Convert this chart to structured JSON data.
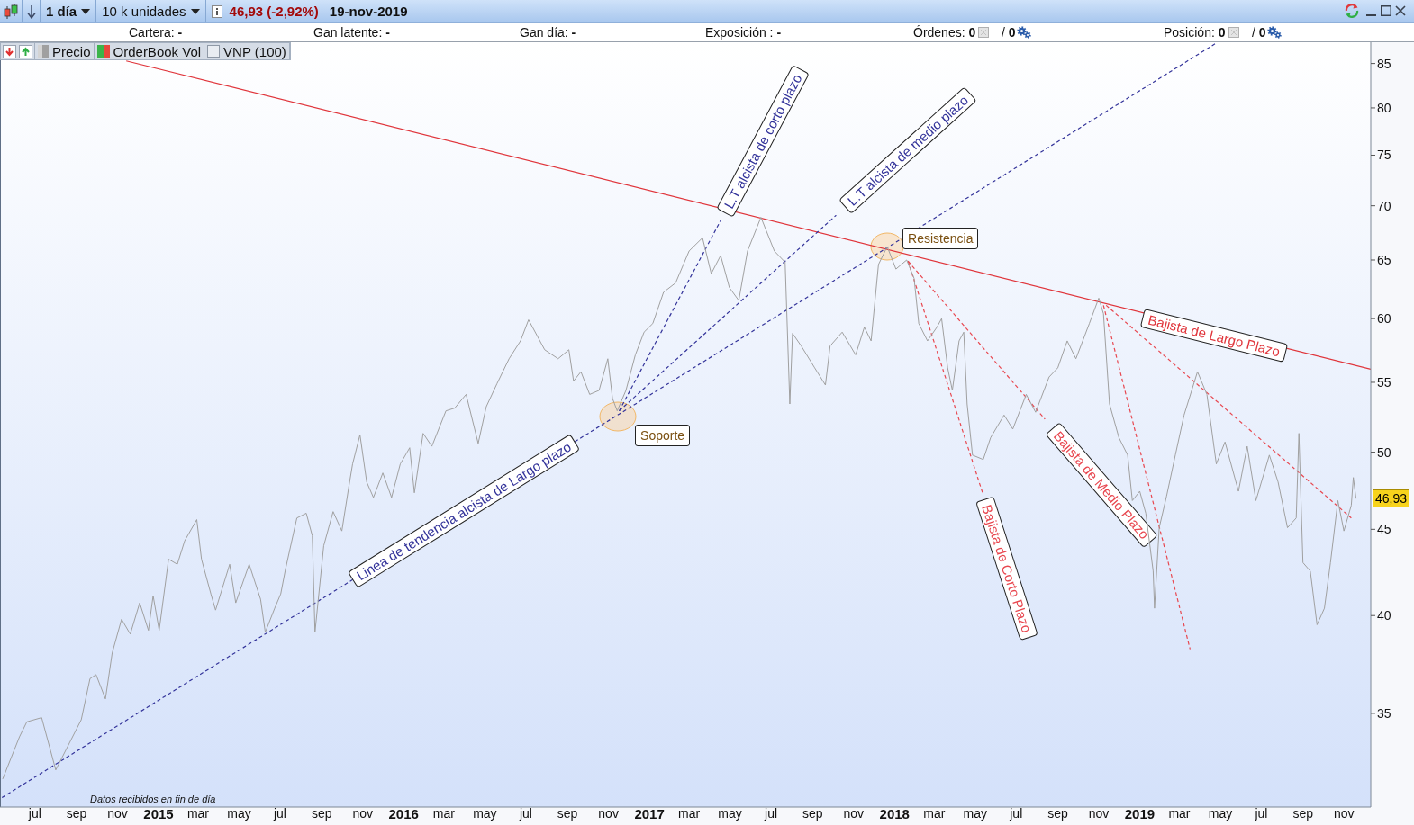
{
  "chart_data": {
    "type": "line",
    "xlim": [
      "2014-05-10",
      "2019-12-11"
    ],
    "ylim": [
      30.8,
      87.5
    ],
    "log": true,
    "xticks": [
      {
        "value": "2014-07-01",
        "label": "jul"
      },
      {
        "value": "2014-09-01",
        "label": "sep"
      },
      {
        "value": "2014-11-01",
        "label": "nov"
      },
      {
        "value": "2015-01-01",
        "label": "2015"
      },
      {
        "value": "2015-03-01",
        "label": "mar"
      },
      {
        "value": "2015-05-01",
        "label": "may"
      },
      {
        "value": "2015-07-01",
        "label": "jul"
      },
      {
        "value": "2015-09-01",
        "label": "sep"
      },
      {
        "value": "2015-11-01",
        "label": "nov"
      },
      {
        "value": "2016-01-01",
        "label": "2016"
      },
      {
        "value": "2016-03-01",
        "label": "mar"
      },
      {
        "value": "2016-05-01",
        "label": "may"
      },
      {
        "value": "2016-07-01",
        "label": "jul"
      },
      {
        "value": "2016-09-01",
        "label": "sep"
      },
      {
        "value": "2016-11-01",
        "label": "nov"
      },
      {
        "value": "2017-01-01",
        "label": "2017"
      },
      {
        "value": "2017-03-01",
        "label": "mar"
      },
      {
        "value": "2017-05-01",
        "label": "may"
      },
      {
        "value": "2017-07-01",
        "label": "jul"
      },
      {
        "value": "2017-09-01",
        "label": "sep"
      },
      {
        "value": "2017-11-01",
        "label": "nov"
      },
      {
        "value": "2018-01-01",
        "label": "2018"
      },
      {
        "value": "2018-03-01",
        "label": "mar"
      },
      {
        "value": "2018-05-01",
        "label": "may"
      },
      {
        "value": "2018-07-01",
        "label": "jul"
      },
      {
        "value": "2018-09-01",
        "label": "sep"
      },
      {
        "value": "2018-11-01",
        "label": "nov"
      },
      {
        "value": "2019-01-01",
        "label": "2019"
      },
      {
        "value": "2019-03-01",
        "label": "mar"
      },
      {
        "value": "2019-05-01",
        "label": "may"
      },
      {
        "value": "2019-07-01",
        "label": "jul"
      },
      {
        "value": "2019-09-01",
        "label": "sep"
      },
      {
        "value": "2019-11-01",
        "label": "nov"
      }
    ],
    "yticks": [
      35,
      40,
      45,
      50,
      55,
      60,
      65,
      70,
      75,
      80,
      85
    ],
    "legend": "top left",
    "series": [
      {
        "name": "Precio",
        "color": "#a0a0a0",
        "x": [
          "2014-05-14",
          "2014-06-08",
          "2014-06-19",
          "2014-07-11",
          "2014-08-01",
          "2014-09-08",
          "2014-09-21",
          "2014-09-30",
          "2014-10-14",
          "2014-10-24",
          "2014-11-07",
          "2014-11-20",
          "2014-12-04",
          "2014-12-17",
          "2014-12-24",
          "2015-01-02",
          "2015-01-16",
          "2015-01-29",
          "2015-02-09",
          "2015-02-27",
          "2015-03-06",
          "2015-03-20",
          "2015-03-27",
          "2015-04-17",
          "2015-04-26",
          "2015-05-16",
          "2015-06-02",
          "2015-06-09",
          "2015-06-23",
          "2015-07-02",
          "2015-07-09",
          "2015-07-26",
          "2015-08-09",
          "2015-08-18",
          "2015-08-22",
          "2015-09-04",
          "2015-09-18",
          "2015-10-01",
          "2015-10-11",
          "2015-10-17",
          "2015-10-28",
          "2015-11-07",
          "2015-11-17",
          "2015-12-01",
          "2015-12-14",
          "2015-12-27",
          "2016-01-10",
          "2016-01-17",
          "2016-01-30",
          "2016-02-12",
          "2016-03-04",
          "2016-03-17",
          "2016-04-03",
          "2016-04-21",
          "2016-05-03",
          "2016-05-19",
          "2016-06-06",
          "2016-06-23",
          "2016-07-05",
          "2016-07-29",
          "2016-08-18",
          "2016-09-03",
          "2016-09-10",
          "2016-09-21",
          "2016-10-04",
          "2016-10-18",
          "2016-10-31",
          "2016-11-07",
          "2016-11-14",
          "2016-11-27",
          "2016-12-11",
          "2016-12-24",
          "2017-01-06",
          "2017-01-22",
          "2017-02-09",
          "2017-03-01",
          "2017-03-21",
          "2017-04-03",
          "2017-04-17",
          "2017-04-30",
          "2017-05-14",
          "2017-05-27",
          "2017-06-16",
          "2017-07-06",
          "2017-07-22",
          "2017-07-29",
          "2017-08-02",
          "2017-08-15",
          "2017-09-04",
          "2017-09-20",
          "2017-09-27",
          "2017-10-15",
          "2017-11-04",
          "2017-11-17",
          "2017-11-27",
          "2017-12-08",
          "2017-12-21",
          "2018-01-03",
          "2018-01-19",
          "2018-01-30",
          "2018-02-06",
          "2018-02-19",
          "2018-03-05",
          "2018-03-12",
          "2018-03-21",
          "2018-03-28",
          "2018-04-07",
          "2018-04-14",
          "2018-04-19",
          "2018-04-27",
          "2018-05-13",
          "2018-05-24",
          "2018-06-13",
          "2018-06-26",
          "2018-07-16",
          "2018-07-30",
          "2018-08-19",
          "2018-09-01",
          "2018-09-15",
          "2018-09-28",
          "2018-10-18",
          "2018-11-01",
          "2018-11-08",
          "2018-11-17",
          "2018-12-01",
          "2018-12-14",
          "2018-12-21",
          "2019-01-01",
          "2019-01-10",
          "2019-01-21",
          "2019-01-23",
          "2019-01-30",
          "2019-02-10",
          "2019-02-23",
          "2019-03-08",
          "2019-03-28",
          "2019-04-11",
          "2019-04-25",
          "2019-05-08",
          "2019-05-28",
          "2019-06-10",
          "2019-06-23",
          "2019-07-13",
          "2019-07-26",
          "2019-08-09",
          "2019-08-22",
          "2019-08-26",
          "2019-09-01",
          "2019-09-12",
          "2019-09-22",
          "2019-10-03",
          "2019-10-12",
          "2019-10-23",
          "2019-11-01",
          "2019-11-12",
          "2019-11-15",
          "2019-11-19"
        ],
        "values": [
          32.0,
          33.9,
          34.6,
          34.8,
          32.4,
          34.7,
          36.7,
          36.9,
          35.7,
          38.0,
          39.8,
          39.0,
          40.7,
          39.2,
          41.1,
          39.2,
          43.2,
          42.9,
          44.3,
          45.6,
          43.2,
          41.2,
          40.3,
          42.9,
          40.7,
          42.9,
          40.9,
          39.1,
          40.4,
          41.2,
          42.6,
          45.7,
          46.0,
          44.6,
          39.1,
          44.0,
          46.1,
          44.9,
          47.6,
          49.2,
          51.2,
          48.0,
          47.0,
          48.6,
          47.0,
          49.2,
          50.3,
          47.3,
          51.3,
          50.4,
          52.9,
          53.1,
          54.1,
          50.6,
          53.2,
          54.9,
          56.8,
          58.2,
          59.9,
          57.5,
          56.8,
          57.5,
          55.1,
          55.8,
          54.1,
          54.4,
          56.8,
          53.8,
          52.9,
          54.4,
          57.1,
          58.9,
          59.6,
          62.2,
          63.0,
          65.8,
          67.0,
          63.8,
          65.4,
          62.6,
          61.5,
          65.8,
          68.9,
          65.8,
          64.8,
          53.4,
          58.8,
          57.8,
          56.1,
          54.8,
          57.8,
          58.9,
          57.1,
          59.3,
          58.2,
          64.6,
          66.2,
          64.2,
          65.0,
          63.4,
          59.6,
          58.2,
          59.3,
          60.0,
          56.1,
          54.4,
          58.2,
          58.9,
          53.4,
          49.8,
          49.5,
          51.0,
          52.6,
          51.6,
          54.1,
          52.8,
          55.4,
          56.1,
          58.2,
          56.8,
          59.6,
          61.7,
          60.4,
          53.4,
          51.0,
          49.8,
          46.8,
          47.4,
          46.0,
          42.5,
          40.4,
          45.1,
          47.1,
          49.8,
          52.6,
          55.8,
          54.1,
          49.2,
          50.7,
          47.4,
          50.4,
          46.8,
          49.8,
          48.0,
          45.1,
          45.7,
          51.3,
          43.0,
          42.5,
          39.5,
          40.4,
          43.0,
          46.8,
          44.9,
          46.5,
          48.3,
          46.93
        ]
      },
      {
        "name": "Bajista de Largo Plazo",
        "color": "#e0353b",
        "x": [
          "2014-11-14",
          "2019-12-11"
        ],
        "values": [
          85.3,
          56.0
        ]
      },
      {
        "name": "Linea de tendencia alcista de Largo plazo",
        "color": "#33339a",
        "line_style": "dashed",
        "x": [
          "2014-05-13",
          "2019-04-25"
        ],
        "values": [
          31.2,
          87.4
        ]
      },
      {
        "name": "L.T alcista de corto plazo",
        "color": "#33339a",
        "line_style": "dashed",
        "x": [
          "2016-11-17",
          "2017-04-17"
        ],
        "values": [
          52.9,
          68.6
        ]
      },
      {
        "name": "L.T alcista de medio plazo",
        "color": "#33339a",
        "line_style": "dashed",
        "x": [
          "2016-11-17",
          "2017-10-06"
        ],
        "values": [
          52.9,
          69.1
        ]
      },
      {
        "name": "Bajista de Corto Plazo",
        "color": "#e8474f",
        "line_style": "dashed",
        "x": [
          "2018-01-21",
          "2018-05-12"
        ],
        "values": [
          64.9,
          47.3
        ]
      },
      {
        "name": "Bajista de Medio Plazo",
        "color": "#e8474f",
        "line_style": "dashed",
        "x": [
          "2018-01-21",
          "2018-08-13"
        ],
        "values": [
          64.9,
          52.3
        ]
      },
      {
        "color": "#e8474f",
        "line_style": "dashed",
        "x": [
          "2018-11-08",
          "2019-03-17"
        ],
        "values": [
          61.1,
          38.2
        ]
      },
      {
        "color": "#e8474f",
        "line_style": "dashed",
        "x": [
          "2018-11-12",
          "2019-11-12"
        ],
        "values": [
          61.1,
          45.7
        ]
      }
    ],
    "annotations": [
      "1 día",
      "10 k unidades",
      "46,93 (-2,92%)",
      "19-nov-2019",
      "Cartera: -",
      "Gan latente: -",
      "Gan día: -",
      "Exposición : -",
      "Órdenes: 0",
      "/ 0",
      "Posición: 0",
      "/ 0",
      "OrderBook Vol",
      "VNP (100)",
      {
        "text": "Soporte",
        "x": "2016-11-15",
        "y": 52.5
      },
      {
        "text": "Resistencia",
        "x": "2017-12-21",
        "y": 66.2
      },
      {
        "text": "46,93",
        "y": 46.93
      },
      "Datos recibidos en fin de día"
    ]
  }
}
